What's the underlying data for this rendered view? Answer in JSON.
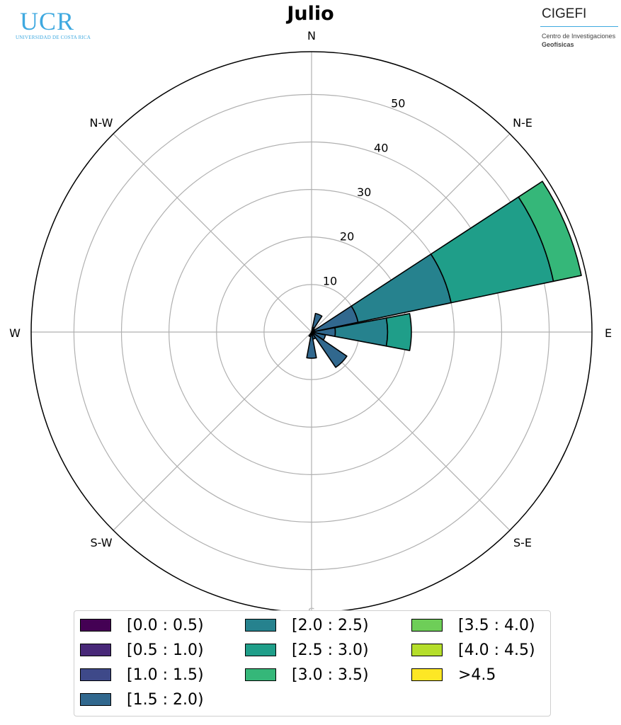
{
  "logos": {
    "ucr": {
      "text": "UCR",
      "subtitle": "UNIVERSIDAD DE COSTA RICA"
    },
    "cigefi": {
      "text": "CIGEFI",
      "line1": "Centro de Investigaciones",
      "line2": "Geofísicas"
    }
  },
  "chart_data": {
    "type": "windrose",
    "title": "Julio",
    "directions": [
      "N",
      "N-E",
      "E",
      "S-E",
      "S",
      "S-W",
      "W",
      "N-W"
    ],
    "radial_ticks": [
      10,
      20,
      30,
      40,
      50
    ],
    "radial_max": 59,
    "sectors": 16,
    "bins": [
      {
        "label": "[0.0 : 0.5)",
        "color": "#440154"
      },
      {
        "label": "[0.5 : 1.0)",
        "color": "#46327e"
      },
      {
        "label": "[1.0 : 1.5)",
        "color": "#365c8d"
      },
      {
        "label": "[1.5 : 2.0)",
        "color": "#277f8e"
      },
      {
        "label": "[2.0 : 2.5)",
        "color": "#1fa187"
      },
      {
        "label": "[2.5 : 3.0)",
        "color": "#4ac16d"
      },
      {
        "label": "[3.0 : 3.5)",
        "color": "#a0da39"
      },
      {
        "label": "[3.5 : 4.0)",
        "color": "#2a788e"
      },
      {
        "label": "[4.0 : 4.5)",
        "color": "#22a884"
      },
      {
        "label": ">4.5",
        "color": "#7ad151"
      }
    ],
    "legend_columns": [
      [
        {
          "label": "[0.0 : 0.5)",
          "color": "#440154"
        },
        {
          "label": "[0.5 : 1.0)",
          "color": "#482878"
        },
        {
          "label": "[1.0 : 1.5)",
          "color": "#3e4989"
        },
        {
          "label": "[1.5 : 2.0)",
          "color": "#31688e"
        }
      ],
      [
        {
          "label": "[2.0 : 2.5)",
          "color": "#26828e"
        },
        {
          "label": "[2.5 : 3.0)",
          "color": "#1f9e89"
        },
        {
          "label": "[3.0 : 3.5)",
          "color": "#35b779"
        }
      ],
      [
        {
          "label": "[3.5 : 4.0)",
          "color": "#6ece58"
        },
        {
          "label": "[4.0 : 4.5)",
          "color": "#b5de2b"
        },
        {
          "label": ">4.5",
          "color": "#fde725"
        }
      ]
    ],
    "series": [
      {
        "direction_deg": 22.5,
        "segments": [
          {
            "bin": 2,
            "from": 0,
            "to": 1.0
          },
          {
            "bin": 3,
            "from": 1.0,
            "to": 4.0
          }
        ]
      },
      {
        "direction_deg": 45.0,
        "segments": [
          {
            "bin": 2,
            "from": 0,
            "to": 0.8
          }
        ]
      },
      {
        "direction_deg": 67.5,
        "segments": [
          {
            "bin": 3,
            "from": 0,
            "to": 10.0
          },
          {
            "bin": 4,
            "from": 10.0,
            "to": 30.0
          },
          {
            "bin": 5,
            "from": 30.0,
            "to": 52.0
          },
          {
            "bin": 6,
            "from": 52.0,
            "to": 58.0
          }
        ]
      },
      {
        "direction_deg": 90.0,
        "segments": [
          {
            "bin": 3,
            "from": 0,
            "to": 5.0
          },
          {
            "bin": 4,
            "from": 5.0,
            "to": 16.0
          },
          {
            "bin": 5,
            "from": 16.0,
            "to": 21.0
          }
        ]
      },
      {
        "direction_deg": 112.5,
        "segments": [
          {
            "bin": 3,
            "from": 0,
            "to": 3.0
          }
        ]
      },
      {
        "direction_deg": 135.0,
        "segments": [
          {
            "bin": 3,
            "from": 0,
            "to": 9.0
          }
        ]
      },
      {
        "direction_deg": 157.5,
        "segments": [
          {
            "bin": 3,
            "from": 0,
            "to": 1.5
          }
        ]
      },
      {
        "direction_deg": 180.0,
        "segments": [
          {
            "bin": 3,
            "from": 0,
            "to": 5.5
          }
        ]
      },
      {
        "direction_deg": 202.5,
        "segments": [
          {
            "bin": 3,
            "from": 0,
            "to": 1.0
          }
        ]
      }
    ]
  }
}
